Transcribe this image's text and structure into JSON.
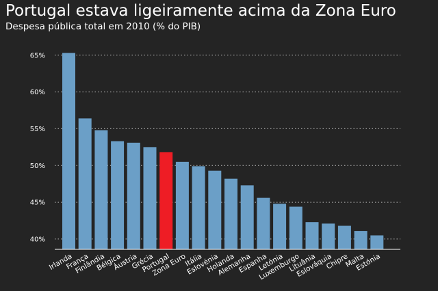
{
  "chart_data": {
    "type": "bar",
    "title": "Portugal estava ligeiramente acima da Zona Euro",
    "subtitle": "Despesa pública total em 2010 (% do PIB)",
    "xlabel": "",
    "ylabel": "",
    "categories": [
      "Irlanda",
      "França",
      "Finlândia",
      "Bélgica",
      "Áustria",
      "Grécia",
      "Portugal",
      "Zona Euro",
      "Itália",
      "Eslovénia",
      "Holanda",
      "Alemanha",
      "Espanha",
      "Letónia",
      "Luxemburgo",
      "Lituânia",
      "Eslováquia",
      "Chipre",
      "Malta",
      "Estónia"
    ],
    "values": [
      65.3,
      56.4,
      54.8,
      53.3,
      53.1,
      52.5,
      51.8,
      50.5,
      49.9,
      49.3,
      48.2,
      47.3,
      45.6,
      44.8,
      44.4,
      42.3,
      42.1,
      41.8,
      41.1,
      40.5
    ],
    "ylim": [
      38.6,
      66
    ],
    "yticks": [
      40,
      45,
      50,
      55,
      60,
      65
    ],
    "ytick_labels": [
      "40%",
      "45%",
      "50%",
      "55%",
      "60%",
      "65%"
    ],
    "grid": true,
    "legend": "none",
    "colors": {
      "bar": "#6b9fc7",
      "highlight": "#ee1d25",
      "highlight_category": "Portugal",
      "background": "#242424",
      "text": "#ffffff",
      "grid": "#bbbbbb"
    }
  }
}
